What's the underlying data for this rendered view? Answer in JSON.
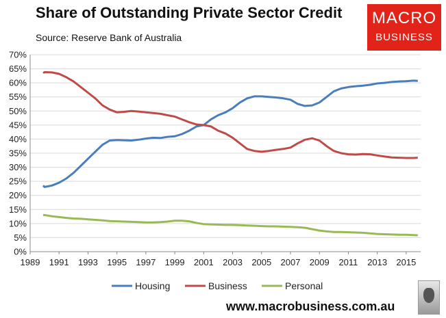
{
  "header": {
    "title": "Share of Outstanding Private Sector Credit",
    "source": "Source: Reserve Bank of Australia"
  },
  "logo": {
    "line1": "MACRO",
    "line2": "BUSINESS",
    "color": "#e2231a"
  },
  "footer": {
    "website": "www.macrobusiness.com.au",
    "emblem_icon": "wolf-icon"
  },
  "chart_data": {
    "type": "line",
    "title": "Share of Outstanding Private Sector Credit",
    "xlabel": "",
    "ylabel": "",
    "xlim": [
      1989,
      2016
    ],
    "ylim": [
      0,
      70
    ],
    "x_ticks": [
      1989,
      1991,
      1993,
      1995,
      1997,
      1999,
      2001,
      2003,
      2005,
      2007,
      2009,
      2011,
      2013,
      2015
    ],
    "y_ticks": [
      "0%",
      "5%",
      "10%",
      "15%",
      "20%",
      "25%",
      "30%",
      "35%",
      "40%",
      "45%",
      "50%",
      "55%",
      "60%",
      "65%",
      "70%"
    ],
    "grid": "horizontal",
    "legend": "bottom",
    "x": [
      1989.9,
      1990,
      1990.5,
      1991,
      1991.5,
      1992,
      1992.5,
      1993,
      1993.5,
      1994,
      1994.5,
      1995,
      1995.5,
      1996,
      1996.5,
      1997,
      1997.5,
      1998,
      1998.5,
      1999,
      1999.5,
      2000,
      2000.5,
      2001,
      2001.5,
      2002,
      2002.5,
      2003,
      2003.5,
      2004,
      2004.5,
      2005,
      2005.5,
      2006,
      2006.5,
      2007,
      2007.5,
      2008,
      2008.5,
      2009,
      2009.5,
      2010,
      2010.5,
      2011,
      2011.5,
      2012,
      2012.5,
      2013,
      2013.5,
      2014,
      2014.5,
      2015,
      2015.5,
      2015.8
    ],
    "series": [
      {
        "name": "Housing",
        "color": "#4a7ebb",
        "values": [
          23.5,
          23.0,
          23.5,
          24.5,
          26.0,
          28.0,
          30.5,
          33.0,
          35.5,
          38.0,
          39.5,
          39.7,
          39.6,
          39.5,
          39.8,
          40.2,
          40.5,
          40.4,
          40.8,
          41.0,
          41.8,
          43.0,
          44.5,
          45.0,
          47.0,
          48.5,
          49.5,
          51.0,
          53.0,
          54.5,
          55.2,
          55.2,
          55.0,
          54.8,
          54.5,
          54.0,
          52.5,
          51.8,
          52.0,
          53.0,
          55.0,
          57.0,
          58.0,
          58.5,
          58.8,
          59.0,
          59.3,
          59.8,
          60.0,
          60.3,
          60.5,
          60.6,
          60.8,
          60.7
        ]
      },
      {
        "name": "Business",
        "color": "#be4b48",
        "values": [
          63.5,
          63.8,
          63.7,
          63.2,
          62.0,
          60.5,
          58.5,
          56.5,
          54.5,
          52.0,
          50.5,
          49.5,
          49.7,
          50.0,
          49.8,
          49.5,
          49.3,
          49.0,
          48.5,
          48.0,
          47.0,
          46.0,
          45.2,
          45.0,
          44.5,
          43.0,
          42.0,
          40.5,
          38.5,
          36.5,
          35.8,
          35.5,
          35.8,
          36.2,
          36.5,
          37.0,
          38.5,
          39.8,
          40.3,
          39.5,
          37.5,
          35.8,
          35.0,
          34.6,
          34.5,
          34.7,
          34.6,
          34.2,
          33.8,
          33.5,
          33.4,
          33.3,
          33.3,
          33.4
        ]
      },
      {
        "name": "Personal",
        "color": "#98b954",
        "values": [
          13.0,
          13.0,
          12.6,
          12.3,
          12.0,
          11.8,
          11.7,
          11.5,
          11.3,
          11.1,
          10.9,
          10.8,
          10.7,
          10.6,
          10.5,
          10.4,
          10.4,
          10.5,
          10.7,
          11.0,
          11.0,
          10.8,
          10.2,
          9.8,
          9.7,
          9.6,
          9.5,
          9.5,
          9.4,
          9.3,
          9.2,
          9.1,
          9.0,
          9.0,
          8.9,
          8.8,
          8.7,
          8.5,
          8.0,
          7.5,
          7.2,
          7.0,
          7.0,
          6.9,
          6.8,
          6.7,
          6.5,
          6.3,
          6.2,
          6.1,
          6.0,
          6.0,
          5.9,
          5.8
        ]
      }
    ]
  }
}
